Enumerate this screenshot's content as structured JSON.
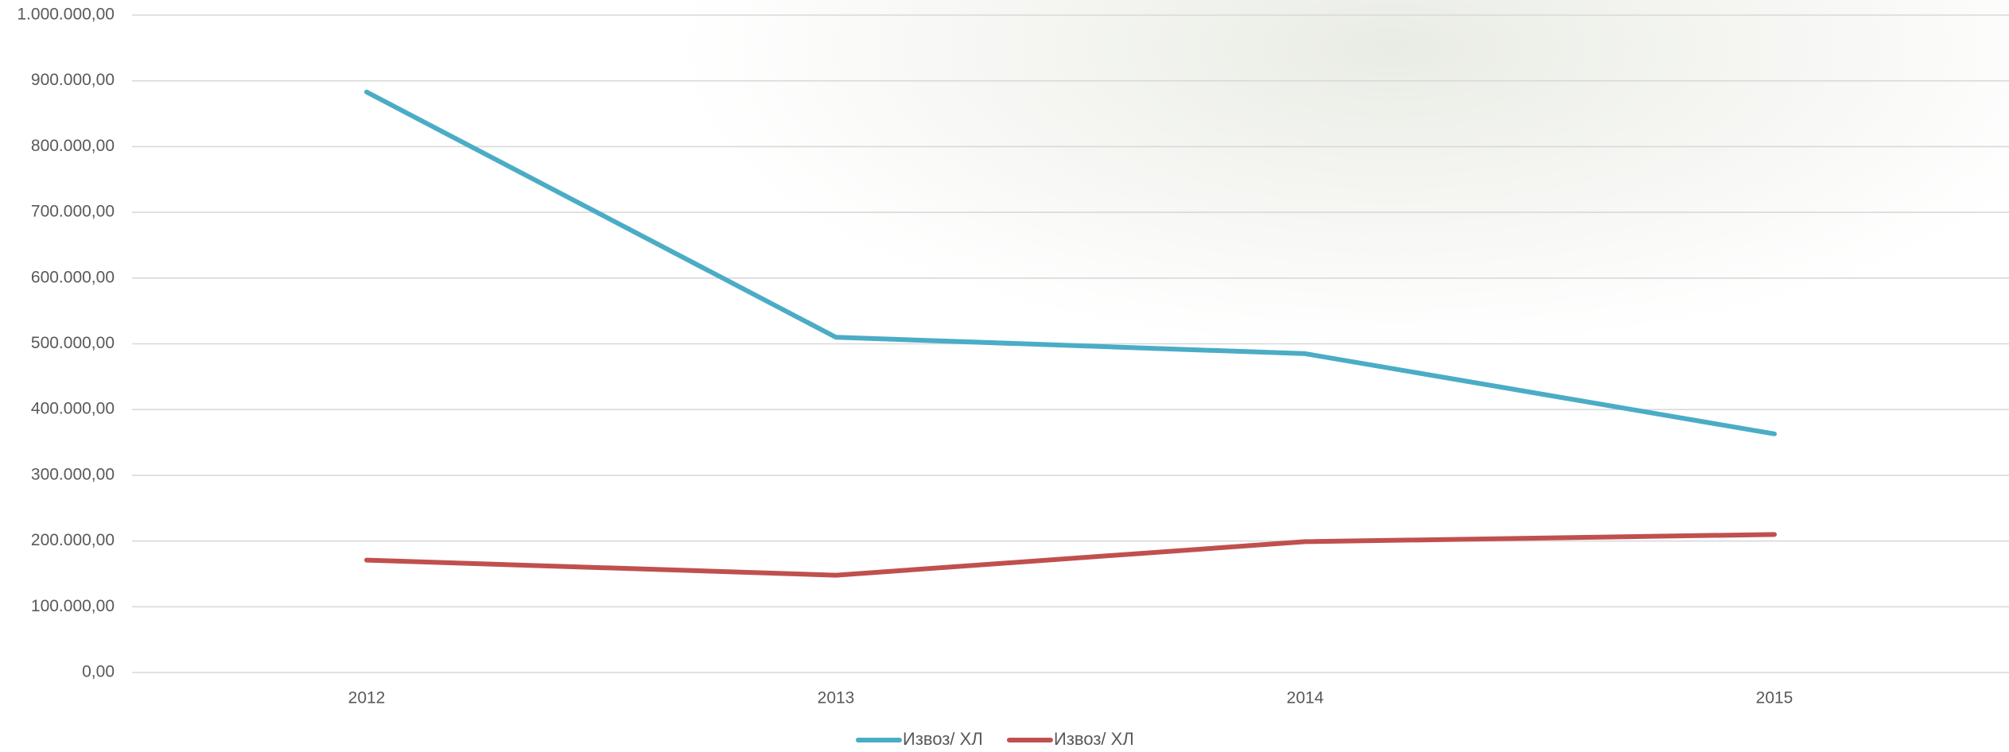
{
  "chart_data": {
    "type": "line",
    "categories": [
      "2012",
      "2013",
      "2014",
      "2015"
    ],
    "series": [
      {
        "name": "Извоз/ ХЛ",
        "color": "#4bacc6",
        "values": [
          883000,
          510000,
          485000,
          363000
        ]
      },
      {
        "name": "Извоз/ ХЛ",
        "color": "#c0504d",
        "values": [
          171000,
          148000,
          199000,
          210000
        ]
      }
    ],
    "ylim": [
      0,
      1000000
    ],
    "yticks": [
      {
        "value": 0,
        "label": "0,00"
      },
      {
        "value": 100000,
        "label": "100.000,00"
      },
      {
        "value": 200000,
        "label": "200.000,00"
      },
      {
        "value": 300000,
        "label": "300.000,00"
      },
      {
        "value": 400000,
        "label": "400.000,00"
      },
      {
        "value": 500000,
        "label": "500.000,00"
      },
      {
        "value": 600000,
        "label": "600.000,00"
      },
      {
        "value": 700000,
        "label": "700.000,00"
      },
      {
        "value": 800000,
        "label": "800.000,00"
      },
      {
        "value": 900000,
        "label": "900.000,00"
      },
      {
        "value": 1000000,
        "label": "1.000.000,00"
      }
    ],
    "grid": true,
    "legend": "bottom"
  }
}
